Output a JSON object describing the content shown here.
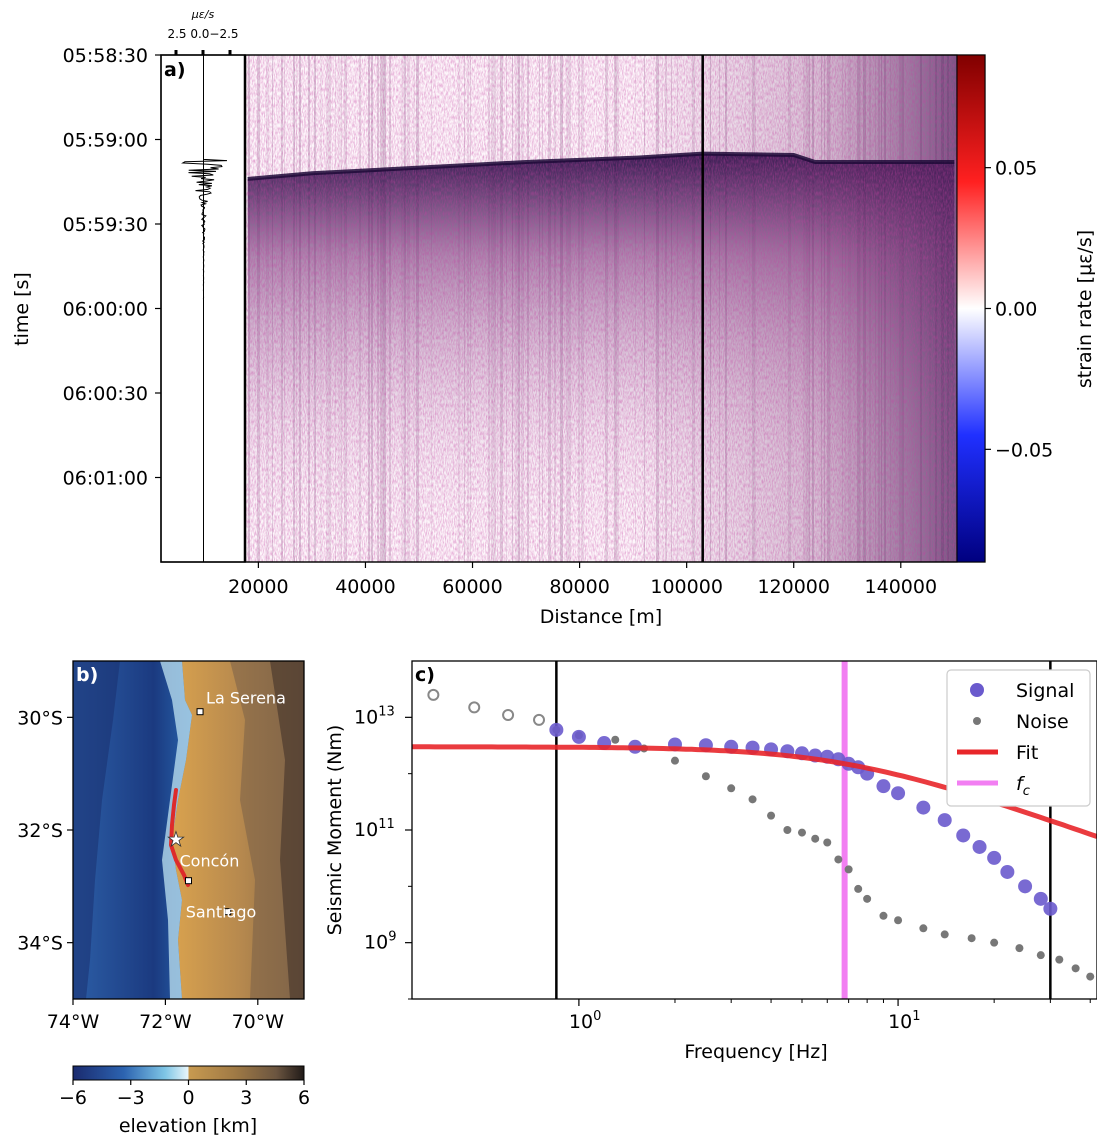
{
  "panel_a": {
    "label": "a)",
    "trace_unit": "με/s",
    "trace_ticks": [
      "2.5",
      "0.0",
      "−2.5"
    ],
    "ylabel": "time [s]",
    "xlabel": "Distance [m]",
    "colorbar_label": "strain rate [με/s]",
    "colorbar_ticks": [
      "0.05",
      "0.00",
      "−0.05"
    ],
    "colors": {
      "positive": "#8b0000",
      "negative": "#00008b",
      "mid": "#ffffff",
      "signal": "#3a1e6e"
    }
  },
  "panel_b": {
    "label": "b)",
    "places": [
      "La Serena",
      "Concón",
      "Santiago"
    ],
    "colorbar_label": "elevation [km]",
    "colorbar_ticks": [
      "−6",
      "−3",
      "0",
      "3",
      "6"
    ]
  },
  "panel_c": {
    "label": "c)",
    "legend": [
      "Signal",
      "Noise",
      "Fit",
      "f_c"
    ],
    "colors": {
      "signal": "#6a5acd",
      "noise": "#777777",
      "fit": "#e8262a",
      "fc": "#f27ff2"
    }
  },
  "chart_data": [
    {
      "type": "heatmap",
      "title": "",
      "xlabel": "Distance [m]",
      "ylabel": "time [s]",
      "x_ticks": [
        20000,
        40000,
        60000,
        80000,
        100000,
        120000,
        140000
      ],
      "xlim": [
        17500,
        150500
      ],
      "y_ticks": [
        "05:58:30",
        "05:59:00",
        "05:59:30",
        "06:00:00",
        "06:00:30",
        "06:01:00"
      ],
      "y_tick_seconds": [
        0,
        30,
        60,
        90,
        120,
        150
      ],
      "ylim_seconds": [
        0,
        180
      ],
      "vertical_lines_m": [
        103000
      ],
      "colorbar": {
        "label": "strain rate [με/s]",
        "ticks": [
          0.05,
          0.0,
          -0.05
        ],
        "range": [
          -0.09,
          0.09
        ]
      },
      "arrival_time_s": [
        [
          18000,
          44
        ],
        [
          30000,
          42
        ],
        [
          50000,
          40
        ],
        [
          70000,
          38
        ],
        [
          90000,
          36.5
        ],
        [
          103000,
          35
        ],
        [
          120000,
          35.5
        ],
        [
          124000,
          38
        ],
        [
          150000,
          38
        ]
      ],
      "trace": {
        "unit": "με/s",
        "ticks": [
          2.5,
          0.0,
          -2.5
        ],
        "peak_time_s": 38
      }
    },
    {
      "type": "map",
      "x_ticks": [
        "74°W",
        "72°W",
        "70°W"
      ],
      "y_ticks": [
        "30°S",
        "32°S",
        "34°S"
      ],
      "lon_range": [
        -74,
        -69
      ],
      "lat_range": [
        -35,
        -29
      ],
      "places": [
        {
          "name": "La Serena",
          "lon": -71.25,
          "lat": -29.9
        },
        {
          "name": "Concón",
          "lon": -71.5,
          "lat": -32.9
        },
        {
          "name": "Santiago",
          "lon": -70.65,
          "lat": -33.45
        }
      ],
      "epicenter": {
        "lon": -71.9,
        "lat": -32.2
      },
      "colorbar": {
        "label": "elevation [km]",
        "ticks": [
          -6,
          -3,
          0,
          3,
          6
        ]
      }
    },
    {
      "type": "scatter",
      "xlabel": "Frequency [Hz]",
      "ylabel": "Seismic Moment (Nm)",
      "x_scale": "log",
      "y_scale": "log",
      "xlim": [
        0.3,
        42
      ],
      "ylim": [
        100000000.0,
        100000000000000.0
      ],
      "x_ticks": [
        "10^0",
        "10^1"
      ],
      "y_ticks": [
        "10^9",
        "10^11",
        "10^13"
      ],
      "vertical_lines_hz": [
        0.85,
        30
      ],
      "fc_hz": 6.8,
      "fit": {
        "omega0": 3000000000000.0,
        "fc": 6.8,
        "n": 2
      },
      "series": [
        {
          "name": "Signal",
          "x": [
            0.85,
            1.0,
            1.2,
            1.5,
            2.0,
            2.5,
            3.0,
            3.5,
            4.0,
            4.5,
            5.0,
            5.5,
            6.0,
            6.5,
            7.0,
            7.5,
            8.0,
            9.0,
            10,
            12,
            14,
            16,
            18,
            20,
            22,
            25,
            28,
            30
          ],
          "y": [
            6000000000000.0,
            4500000000000.0,
            3500000000000.0,
            3000000000000.0,
            3300000000000.0,
            3200000000000.0,
            3000000000000.0,
            2900000000000.0,
            2700000000000.0,
            2500000000000.0,
            2300000000000.0,
            2100000000000.0,
            2000000000000.0,
            1800000000000.0,
            1500000000000.0,
            1300000000000.0,
            1000000000000.0,
            600000000000.0,
            450000000000.0,
            250000000000.0,
            150000000000.0,
            80000000000.0,
            50000000000.0,
            32000000000.0,
            18000000000.0,
            10000000000.0,
            6000000000.0,
            4000000000.0
          ]
        },
        {
          "name": "Noise",
          "x": [
            0.35,
            0.47,
            0.6,
            0.75,
            0.85,
            1.0,
            1.3,
            1.6,
            2.0,
            2.5,
            3.0,
            3.5,
            4.0,
            4.5,
            5.0,
            5.5,
            6.0,
            6.5,
            7.0,
            7.5,
            8.0,
            9.0,
            10,
            12,
            14,
            17,
            20,
            24,
            28,
            32,
            36,
            40
          ],
          "y": [
            25000000000000.0,
            15000000000000.0,
            11000000000000.0,
            9000000000000.0,
            6000000000000.0,
            4800000000000.0,
            4000000000000.0,
            2800000000000.0,
            1700000000000.0,
            900000000000.0,
            550000000000.0,
            350000000000.0,
            180000000000.0,
            100000000000.0,
            90000000000.0,
            70000000000.0,
            60000000000.0,
            30000000000.0,
            20000000000.0,
            9000000000.0,
            6000000000.0,
            3000000000.0,
            2500000000.0,
            1800000000.0,
            1400000000.0,
            1200000000.0,
            1000000000.0,
            800000000.0,
            600000000.0,
            500000000.0,
            350000000.0,
            250000000.0
          ]
        }
      ]
    }
  ]
}
